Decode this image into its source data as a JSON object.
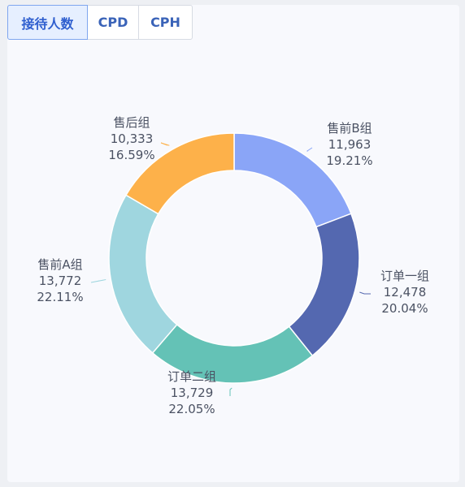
{
  "tabs": [
    {
      "label": "接待人数",
      "active": true
    },
    {
      "label": "CPD",
      "active": false
    },
    {
      "label": "CPH",
      "active": false
    }
  ],
  "chart_data": {
    "type": "pie",
    "donut": true,
    "title": "",
    "legend": "none",
    "slices": [
      {
        "name": "售前B组",
        "value": 11963,
        "value_label": "11,963",
        "percent_label": "19.21%",
        "color": "#8aa5f7"
      },
      {
        "name": "订单一组",
        "value": 12478,
        "value_label": "12,478",
        "percent_label": "20.04%",
        "color": "#5468b0"
      },
      {
        "name": "订单二组",
        "value": 13729,
        "value_label": "13,729",
        "percent_label": "22.05%",
        "color": "#64c2b6"
      },
      {
        "name": "售前A组",
        "value": 13772,
        "value_label": "13,772",
        "percent_label": "22.11%",
        "color": "#9fd6df"
      },
      {
        "name": "售后组",
        "value": 10333,
        "value_label": "10,333",
        "percent_label": "16.59%",
        "color": "#fdb14a"
      }
    ]
  }
}
